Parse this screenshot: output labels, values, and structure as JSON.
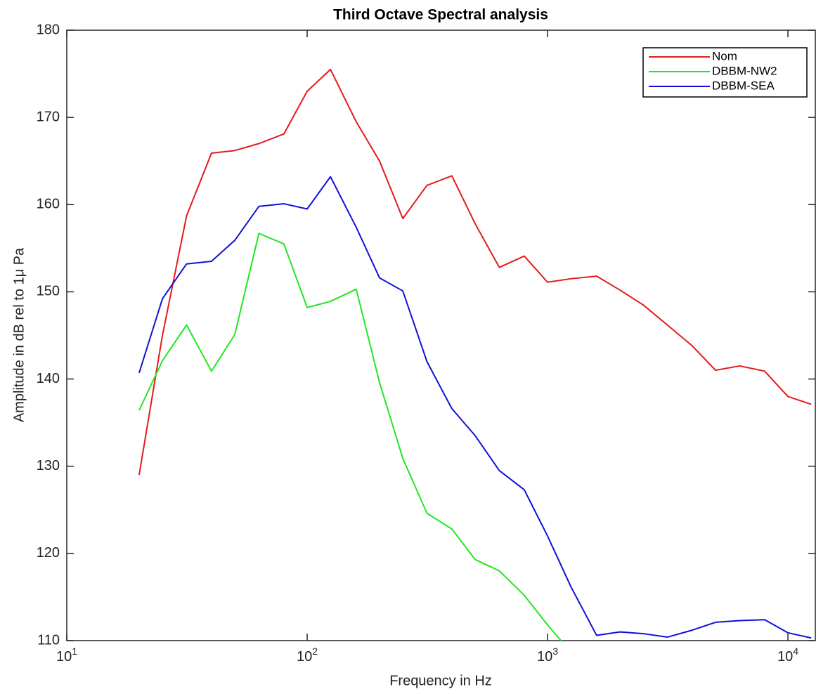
{
  "chart_data": {
    "type": "line",
    "title": "Third Octave Spectral analysis",
    "x_label": "Frequency in Hz",
    "y_label": "Amplitude in dB rel to 1μ Pa",
    "x": [
      20,
      25,
      31.5,
      40,
      50,
      63,
      80,
      100,
      125,
      160,
      200,
      250,
      315,
      400,
      500,
      630,
      800,
      1000,
      1250,
      1600,
      2000,
      2500,
      3150,
      4000,
      5000,
      6300,
      8000,
      10000,
      12500
    ],
    "series": [
      {
        "name": "Nom",
        "color": "#e41a1c",
        "values": [
          129,
          145,
          158.7,
          165.9,
          166.2,
          167,
          168.1,
          173,
          175.5,
          169.5,
          165,
          158.4,
          162.2,
          163.3,
          157.8,
          152.8,
          154.1,
          151.1,
          151.5,
          151.8,
          150.2,
          148.5,
          146.2,
          143.8,
          141,
          141.5,
          140.9,
          138,
          137.1
        ]
      },
      {
        "name": "DBBM-NW2",
        "color": "#22e622",
        "values": [
          136.4,
          142.1,
          146.2,
          140.9,
          145.1,
          156.7,
          155.5,
          148.2,
          148.9,
          150.3,
          139.6,
          130.9,
          124.6,
          122.8,
          119.3,
          118,
          115.2,
          111.8,
          108.7,
          null,
          null,
          null,
          null,
          null,
          null,
          null,
          null,
          null,
          null
        ]
      },
      {
        "name": "DBBM-SEA",
        "color": "#1010d8",
        "values": [
          140.7,
          149.2,
          153.2,
          153.5,
          155.9,
          159.8,
          160.1,
          159.5,
          163.2,
          157.4,
          151.6,
          150.1,
          142,
          136.6,
          133.5,
          129.5,
          127.3,
          122,
          116.2,
          110.6,
          111,
          110.8,
          110.4,
          111.2,
          112.1,
          112.3,
          112.4,
          110.9,
          110.3
        ]
      }
    ],
    "xscale": "log",
    "xlim": [
      10,
      13000
    ],
    "xticks": [
      {
        "value": 10,
        "label": "10^1"
      },
      {
        "value": 100,
        "label": "10^2"
      },
      {
        "value": 1000,
        "label": "10^3"
      },
      {
        "value": 10000,
        "label": "10^4"
      }
    ],
    "ylim": [
      110,
      180
    ],
    "yticks": [
      110,
      120,
      130,
      140,
      150,
      160,
      170,
      180
    ],
    "grid": false,
    "legend": "upper right"
  }
}
